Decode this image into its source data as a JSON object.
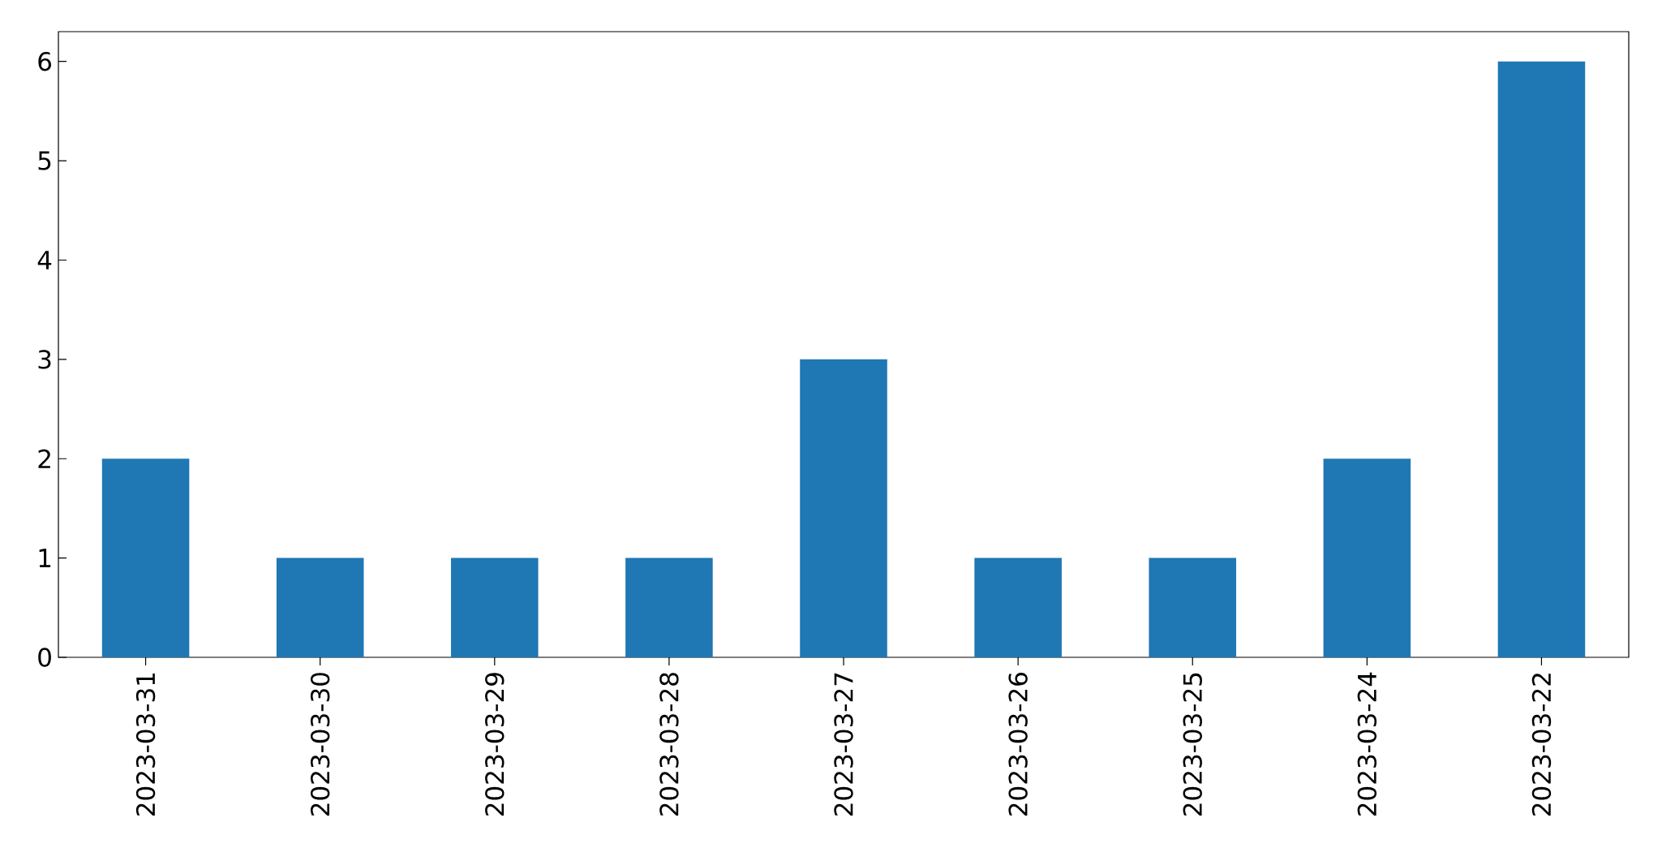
{
  "chart_data": {
    "type": "bar",
    "categories": [
      "2023-03-31",
      "2023-03-30",
      "2023-03-29",
      "2023-03-28",
      "2023-03-27",
      "2023-03-26",
      "2023-03-25",
      "2023-03-24",
      "2023-03-22"
    ],
    "values": [
      2,
      1,
      1,
      1,
      3,
      1,
      1,
      2,
      6
    ],
    "color": "#1f77b4",
    "ylim": [
      0,
      6.3
    ],
    "yticks": [
      0,
      1,
      2,
      3,
      4,
      5,
      6
    ]
  }
}
